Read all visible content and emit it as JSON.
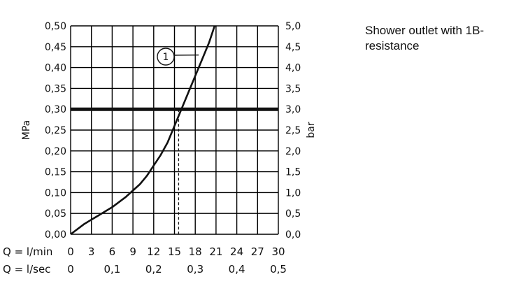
{
  "description": "Shower outlet with 1B-resistance",
  "chart_data": {
    "type": "line",
    "ylabel_left": "MPa",
    "ylabel_right": "bar",
    "x_row_labels": [
      "Q = l/min",
      "Q = l/sec"
    ],
    "xlim": [
      0,
      30
    ],
    "ylim": [
      0,
      0.5
    ],
    "x_ticks_lmin": [
      "0",
      "3",
      "6",
      "9",
      "12",
      "15",
      "18",
      "21",
      "24",
      "27",
      "30"
    ],
    "x_ticks_lsec": [
      "0",
      "0,1",
      "0,2",
      "0,3",
      "0,4",
      "0,5"
    ],
    "y_ticks_mpa": [
      "0,00",
      "0,05",
      "0,10",
      "0,15",
      "0,20",
      "0,25",
      "0,30",
      "0,35",
      "0,40",
      "0,45",
      "0,50"
    ],
    "y_ticks_bar": [
      "0,0",
      "0,5",
      "1,0",
      "1,5",
      "2,0",
      "2,5",
      "3,0",
      "3,5",
      "4,0",
      "4,5",
      "5,0"
    ],
    "grid": true,
    "reference_line": {
      "y": 0.3,
      "x_at_intersection": 15.6
    },
    "series": [
      {
        "name": "1",
        "x": [
          0,
          2,
          4,
          6,
          8,
          10,
          11,
          12,
          13,
          14,
          15,
          16,
          17,
          18,
          19,
          20,
          20.8
        ],
        "y": [
          0,
          0.025,
          0.045,
          0.065,
          0.09,
          0.12,
          0.14,
          0.165,
          0.19,
          0.22,
          0.26,
          0.3,
          0.34,
          0.38,
          0.42,
          0.46,
          0.5
        ]
      }
    ]
  }
}
